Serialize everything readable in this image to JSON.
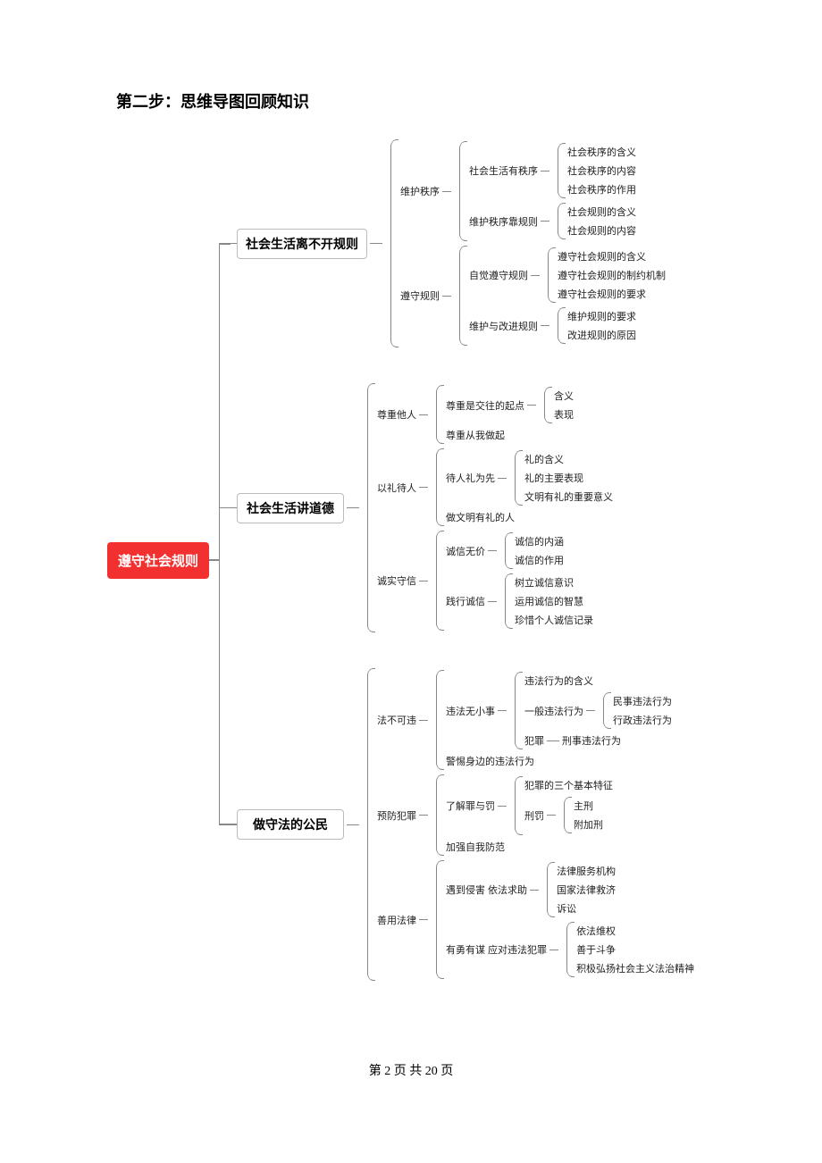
{
  "heading": "第二步：思维导图回顾知识",
  "root": "遵守社会规则",
  "colors": {
    "root_bg": "#f33030",
    "root_fg": "#ffffff",
    "line": "#888888",
    "box_border": "#bbbbbb",
    "text": "#222222"
  },
  "branches": [
    {
      "label": "社会生活离不开规则",
      "children": [
        {
          "label": "维护秩序",
          "children": [
            {
              "label": "社会生活有秩序",
              "children": [
                {
                  "label": "社会秩序的含义"
                },
                {
                  "label": "社会秩序的内容"
                },
                {
                  "label": "社会秩序的作用"
                }
              ]
            },
            {
              "label": "维护秩序靠规则",
              "children": [
                {
                  "label": "社会规则的含义"
                },
                {
                  "label": "社会规则的内容"
                }
              ]
            }
          ]
        },
        {
          "label": "遵守规则",
          "children": [
            {
              "label": "自觉遵守规则",
              "children": [
                {
                  "label": "遵守社会规则的含义"
                },
                {
                  "label": "遵守社会规则的制约机制"
                },
                {
                  "label": "遵守社会规则的要求"
                }
              ]
            },
            {
              "label": "维护与改进规则",
              "children": [
                {
                  "label": "维护规则的要求"
                },
                {
                  "label": "改进规则的原因"
                }
              ]
            }
          ]
        }
      ]
    },
    {
      "label": "社会生活讲道德",
      "children": [
        {
          "label": "尊重他人",
          "children": [
            {
              "label": "尊重是交往的起点",
              "children": [
                {
                  "label": "含义"
                },
                {
                  "label": "表现"
                }
              ]
            },
            {
              "label": "尊重从我做起"
            }
          ]
        },
        {
          "label": "以礼待人",
          "children": [
            {
              "label": "待人礼为先",
              "children": [
                {
                  "label": "礼的含义"
                },
                {
                  "label": "礼的主要表现"
                },
                {
                  "label": "文明有礼的重要意义"
                }
              ]
            },
            {
              "label": "做文明有礼的人"
            }
          ]
        },
        {
          "label": "诚实守信",
          "children": [
            {
              "label": "诚信无价",
              "children": [
                {
                  "label": "诚信的内涵"
                },
                {
                  "label": "诚信的作用"
                }
              ]
            },
            {
              "label": "践行诚信",
              "children": [
                {
                  "label": "树立诚信意识"
                },
                {
                  "label": "运用诚信的智慧"
                },
                {
                  "label": "珍惜个人诚信记录"
                }
              ]
            }
          ]
        }
      ]
    },
    {
      "label": "做守法的公民",
      "children": [
        {
          "label": "法不可违",
          "children": [
            {
              "label": "违法无小事",
              "children": [
                {
                  "label": "违法行为的含义"
                },
                {
                  "label": "一般违法行为",
                  "children": [
                    {
                      "label": "民事违法行为"
                    },
                    {
                      "label": "行政违法行为"
                    }
                  ]
                },
                {
                  "label": "犯罪",
                  "arrow_to": "刑事违法行为"
                }
              ]
            },
            {
              "label": "警惕身边的违法行为"
            }
          ]
        },
        {
          "label": "预防犯罪",
          "children": [
            {
              "label": "了解罪与罚",
              "children": [
                {
                  "label": "犯罪的三个基本特征"
                },
                {
                  "label": "刑罚",
                  "children": [
                    {
                      "label": "主刑"
                    },
                    {
                      "label": "附加刑"
                    }
                  ]
                }
              ]
            },
            {
              "label": "加强自我防范"
            }
          ]
        },
        {
          "label": "善用法律",
          "children": [
            {
              "label": "遇到侵害 依法求助",
              "children": [
                {
                  "label": "法律服务机构"
                },
                {
                  "label": "国家法律救济"
                },
                {
                  "label": "诉讼"
                }
              ]
            },
            {
              "label": "有勇有谋 应对违法犯罪",
              "children": [
                {
                  "label": "依法维权"
                },
                {
                  "label": "善于斗争"
                },
                {
                  "label": "积极弘扬社会主义法治精神"
                }
              ]
            }
          ]
        }
      ]
    }
  ],
  "footer": {
    "prefix": "第 ",
    "page": "2",
    "mid": " 页 共 ",
    "total": "20",
    "suffix": " 页"
  }
}
